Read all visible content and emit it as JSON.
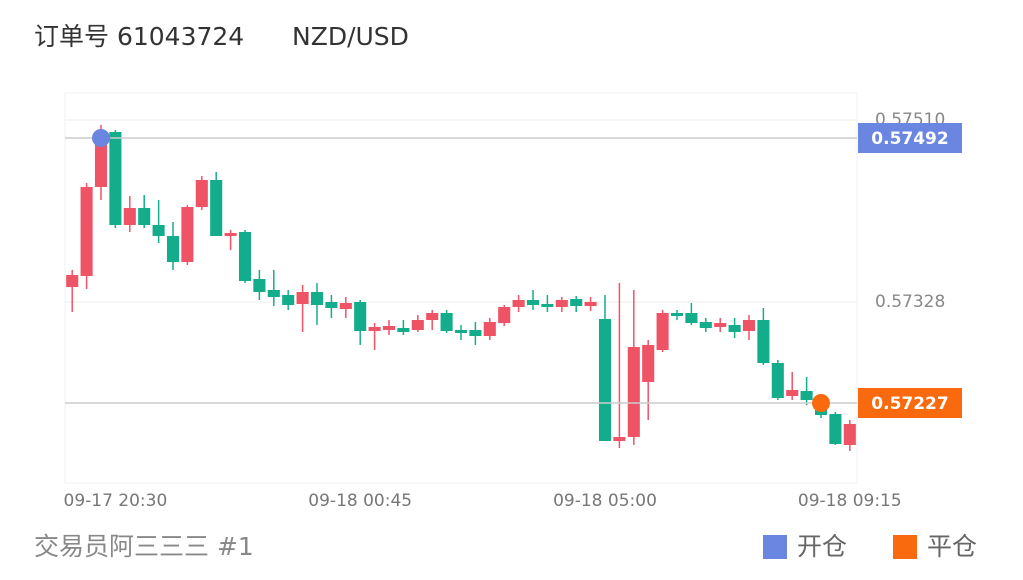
{
  "chart_data": {
    "type": "candlestick",
    "title": "订单号 61043724",
    "symbol": "NZD/USD",
    "footer": "交易员阿三三三 #1",
    "up_color": "#ef5466",
    "down_color": "#14ad8c",
    "x": [
      "09-17 19:45",
      "09-17 20:00",
      "09-17 20:15",
      "09-17 20:30",
      "09-17 20:45",
      "09-17 21:00",
      "09-17 21:15",
      "09-17 21:30",
      "09-17 21:45",
      "09-17 22:00",
      "09-17 22:15",
      "09-17 22:30",
      "09-17 22:45",
      "09-17 23:00",
      "09-17 23:15",
      "09-17 23:30",
      "09-17 23:45",
      "09-18 00:00",
      "09-18 00:15",
      "09-18 00:30",
      "09-18 00:45",
      "09-18 01:00",
      "09-18 01:15",
      "09-18 01:30",
      "09-18 01:45",
      "09-18 02:00",
      "09-18 02:15",
      "09-18 02:30",
      "09-18 02:45",
      "09-18 03:00",
      "09-18 03:15",
      "09-18 03:30",
      "09-18 03:45",
      "09-18 04:00",
      "09-18 04:15",
      "09-18 04:30",
      "09-18 04:45",
      "09-18 05:00",
      "09-18 05:15",
      "09-18 05:30",
      "09-18 05:45",
      "09-18 06:00",
      "09-18 06:15",
      "09-18 06:30",
      "09-18 06:45",
      "09-18 07:00",
      "09-18 07:15",
      "09-18 07:30",
      "09-18 07:45",
      "09-18 08:00",
      "09-18 08:15",
      "09-18 08:30",
      "09-18 08:45",
      "09-18 09:00",
      "09-18 09:15"
    ],
    "open": [
      0.57343,
      0.57354,
      0.57443,
      0.57498,
      0.57405,
      0.57422,
      0.57405,
      0.57394,
      0.57368,
      0.57423,
      0.5745,
      0.57394,
      0.57398,
      0.57351,
      0.5734,
      0.57335,
      0.57326,
      0.57338,
      0.57328,
      0.57321,
      0.57328,
      0.57299,
      0.573,
      0.57302,
      0.573,
      0.5731,
      0.57317,
      0.573,
      0.573,
      0.57294,
      0.57307,
      0.57323,
      0.5733,
      0.57326,
      0.57323,
      0.57331,
      0.57324,
      0.57311,
      0.57189,
      0.57193,
      0.57248,
      0.5728,
      0.57317,
      0.57317,
      0.57308,
      0.57303,
      0.57305,
      0.57299,
      0.5731,
      0.57267,
      0.57234,
      0.57239,
      0.5723,
      0.57216,
      0.57185
    ],
    "high": [
      0.5736,
      0.57447,
      0.57505,
      0.575,
      0.57434,
      0.57435,
      0.5743,
      0.57408,
      0.57425,
      0.57454,
      0.57458,
      0.574,
      0.574,
      0.5736,
      0.5736,
      0.5734,
      0.57345,
      0.57347,
      0.57335,
      0.57333,
      0.5733,
      0.57307,
      0.5731,
      0.5731,
      0.57315,
      0.5732,
      0.5732,
      0.57305,
      0.57308,
      0.57312,
      0.57325,
      0.57335,
      0.5734,
      0.57335,
      0.57333,
      0.57334,
      0.57333,
      0.57335,
      0.57347,
      0.5734,
      0.5729,
      0.5732,
      0.5732,
      0.57327,
      0.57312,
      0.57312,
      0.57312,
      0.57315,
      0.57322,
      0.5727,
      0.57258,
      0.57253,
      0.57232,
      0.57218,
      0.5721
    ],
    "low": [
      0.57318,
      0.57341,
      0.5743,
      0.57402,
      0.57398,
      0.57402,
      0.57387,
      0.5736,
      0.57365,
      0.5742,
      0.57394,
      0.5738,
      0.57347,
      0.5733,
      0.57324,
      0.5732,
      0.57298,
      0.57305,
      0.57312,
      0.57312,
      0.57285,
      0.5728,
      0.57295,
      0.57295,
      0.57298,
      0.573,
      0.57297,
      0.5729,
      0.57285,
      0.5729,
      0.57304,
      0.57318,
      0.5732,
      0.57318,
      0.57318,
      0.57318,
      0.57319,
      0.57189,
      0.57182,
      0.57185,
      0.5721,
      0.57278,
      0.5731,
      0.57305,
      0.57298,
      0.57298,
      0.57292,
      0.5729,
      0.57265,
      0.5723,
      0.5723,
      0.57225,
      0.57212,
      0.57185,
      0.57179
    ],
    "close": [
      0.57355,
      0.57443,
      0.5749,
      0.57405,
      0.57422,
      0.57405,
      0.57394,
      0.57368,
      0.57423,
      0.5745,
      0.57394,
      0.57397,
      0.57349,
      0.57338,
      0.57333,
      0.57325,
      0.57338,
      0.57325,
      0.57322,
      0.57327,
      0.57299,
      0.57303,
      0.57304,
      0.57298,
      0.5731,
      0.57317,
      0.57299,
      0.57297,
      0.57294,
      0.57308,
      0.57323,
      0.5733,
      0.57325,
      0.57323,
      0.5733,
      0.57324,
      0.57328,
      0.57189,
      0.57193,
      0.57283,
      0.57285,
      0.57317,
      0.57314,
      0.57307,
      0.57302,
      0.57307,
      0.57298,
      0.5731,
      0.57267,
      0.57232,
      0.5724,
      0.5723,
      0.57215,
      0.57186,
      0.57206
    ],
    "ylim": [
      0.57147,
      0.57537
    ],
    "yticks": [
      {
        "value": 0.5751,
        "label": "0.57510"
      },
      0.57328
    ],
    "xticks": [
      "09-17 20:30",
      "09-18 00:45",
      "09-18 05:00",
      "09-18 09:15"
    ],
    "markers": [
      {
        "name": "开仓",
        "color": "#6b86e0",
        "x": "09-17 20:15",
        "value": 0.57492
      },
      {
        "name": "平仓",
        "color": "#f96a0e",
        "x": "09-18 08:45",
        "value": 0.57227
      }
    ]
  }
}
